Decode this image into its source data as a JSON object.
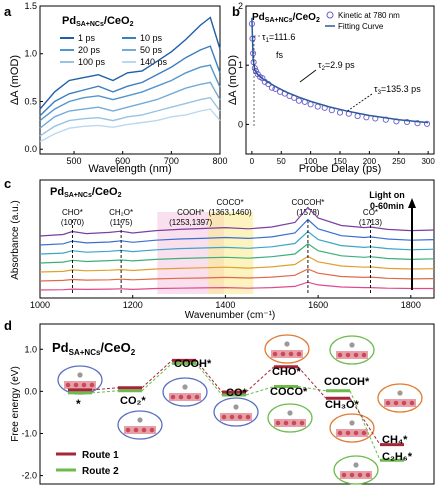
{
  "panels": {
    "a": {
      "label": "a",
      "title_main": "Pd",
      "title_sub": "SA+NCs",
      "title_tail": "/CeO",
      "title_sub2": "2",
      "xlabel": "Wavelength (nm)",
      "ylabel": "ΔA (mOD)",
      "legend": [
        "1 ps",
        "10 ps",
        "20 ps",
        "50 ps",
        "100 ps",
        "140 ps"
      ]
    },
    "b": {
      "label": "b",
      "title_main": "Pd",
      "title_sub": "SA+NCs",
      "title_tail": "/CeO",
      "title_sub2": "2",
      "xlabel": "Probe Delay (ps)",
      "ylabel": "ΔA (mOD)",
      "legend_kinetic": "Kinetic at 780 nm",
      "legend_fit": "Fitting Curve",
      "tau1": "τ",
      "tau1_sub": "1",
      "tau1_val": "=111.6",
      "tau1_unit": "fs",
      "tau2": "τ",
      "tau2_sub": "2",
      "tau2_val": "=2.9 ps",
      "tau3": "τ",
      "tau3_sub": "3",
      "tau3_val": "=135.3 ps"
    },
    "c": {
      "label": "c",
      "title_main": "Pd",
      "title_sub": "SA+NCs",
      "title_tail": "/CeO",
      "title_sub2": "2",
      "xlabel": "Wavenumber (cm⁻¹)",
      "ylabel": "Absorbance (a.u.)",
      "light_on": "Light on",
      "light_range": "0-60min",
      "peaks": [
        {
          "name": "CHO*",
          "pos": "(1070)"
        },
        {
          "name": "CH₂O*",
          "pos": "(1175)"
        },
        {
          "name": "COOH*",
          "pos": "(1253,1397)"
        },
        {
          "name": "COCO*",
          "pos": "(1363,1460)"
        },
        {
          "name": "COCOH*",
          "pos": "(1578)"
        },
        {
          "name": "CO*",
          "pos": "(1713)"
        }
      ]
    },
    "d": {
      "label": "d",
      "title_main": "Pd",
      "title_sub": "SA+NCs",
      "title_tail": "/CeO",
      "title_sub2": "2",
      "ylabel": "Free energy (eV)",
      "species": {
        "star": "*",
        "co2": "CO₂*",
        "cooh": "COOH*",
        "co": "CO*",
        "cho": "CHO*",
        "coco": "COCO*",
        "cocoh": "COCOH*",
        "ch3o": "CH₃O*",
        "ch4": "CH₄*",
        "c2h6": "C₂H₆*"
      },
      "legend_route1": "Route 1",
      "legend_route2": "Route 2",
      "colors": {
        "route1": "#a62639",
        "route2": "#6cbb4c"
      }
    }
  },
  "chart_data": [
    {
      "type": "line",
      "panel": "a",
      "xlabel": "Wavelength (nm)",
      "ylabel": "ΔA (mOD)",
      "xlim": [
        430,
        800
      ],
      "ylim": [
        -0.05,
        1.5
      ],
      "xticks": [
        500,
        600,
        700,
        800
      ],
      "yticks": [
        0.0,
        0.5,
        1.0,
        1.5
      ],
      "x": [
        430,
        460,
        490,
        520,
        550,
        580,
        610,
        640,
        670,
        700,
        730,
        760,
        780,
        800
      ],
      "series": [
        {
          "name": "1 ps",
          "color": "#1f5fa8",
          "values": [
            0.42,
            0.6,
            0.72,
            0.75,
            0.78,
            0.72,
            0.8,
            0.82,
            0.92,
            1.02,
            1.15,
            1.3,
            1.38,
            1.05
          ]
        },
        {
          "name": "10 ps",
          "color": "#3a7fc1",
          "values": [
            0.35,
            0.5,
            0.58,
            0.62,
            0.66,
            0.6,
            0.66,
            0.7,
            0.78,
            0.86,
            0.96,
            1.04,
            1.08,
            0.8
          ]
        },
        {
          "name": "20 ps",
          "color": "#5596cc",
          "values": [
            0.3,
            0.42,
            0.5,
            0.54,
            0.56,
            0.52,
            0.56,
            0.6,
            0.66,
            0.72,
            0.8,
            0.86,
            0.88,
            0.65
          ]
        },
        {
          "name": "50 ps",
          "color": "#74acd8",
          "values": [
            0.22,
            0.34,
            0.4,
            0.42,
            0.44,
            0.4,
            0.44,
            0.48,
            0.52,
            0.58,
            0.64,
            0.68,
            0.7,
            0.52
          ]
        },
        {
          "name": "100 ps",
          "color": "#98c3e4",
          "values": [
            0.14,
            0.24,
            0.3,
            0.32,
            0.33,
            0.3,
            0.34,
            0.36,
            0.4,
            0.44,
            0.48,
            0.52,
            0.54,
            0.4
          ]
        },
        {
          "name": "140 ps",
          "color": "#bcd8ee",
          "values": [
            0.08,
            0.16,
            0.22,
            0.24,
            0.25,
            0.23,
            0.26,
            0.28,
            0.3,
            0.34,
            0.36,
            0.4,
            0.42,
            0.3
          ]
        }
      ]
    },
    {
      "type": "scatter",
      "panel": "b",
      "xlabel": "Probe Delay (ps)",
      "ylabel": "ΔA (mOD)",
      "xlim": [
        -10,
        310
      ],
      "ylim": [
        -0.5,
        2.0
      ],
      "xticks": [
        0,
        50,
        100,
        150,
        200,
        250,
        300
      ],
      "yticks": [
        0,
        1,
        2
      ],
      "kinetic_x": [
        0,
        1,
        2,
        3,
        5,
        7,
        10,
        14,
        18,
        22,
        28,
        34,
        40,
        48,
        56,
        64,
        72,
        80,
        90,
        100,
        112,
        124,
        136,
        150,
        165,
        180,
        195,
        210,
        228,
        246,
        264,
        282,
        298
      ],
      "kinetic_y": [
        1.7,
        1.45,
        1.2,
        1.05,
        0.95,
        0.9,
        0.85,
        0.8,
        0.78,
        0.72,
        0.68,
        0.62,
        0.6,
        0.55,
        0.52,
        0.48,
        0.45,
        0.4,
        0.38,
        0.34,
        0.3,
        0.28,
        0.24,
        0.2,
        0.18,
        0.14,
        0.12,
        0.1,
        0.08,
        0.05,
        0.04,
        0.02,
        0.01
      ],
      "fit_x": [
        0,
        2,
        5,
        10,
        20,
        40,
        60,
        80,
        100,
        130,
        160,
        200,
        250,
        300
      ],
      "fit_y": [
        1.8,
        1.1,
        0.92,
        0.84,
        0.76,
        0.64,
        0.54,
        0.46,
        0.39,
        0.3,
        0.23,
        0.15,
        0.08,
        0.03
      ]
    },
    {
      "type": "line",
      "panel": "c",
      "xlabel": "Wavenumber (cm⁻¹)",
      "ylabel": "Absorbance (a.u.)",
      "xlim": [
        1000,
        1850
      ],
      "xticks": [
        1000,
        1200,
        1400,
        1600,
        1800
      ],
      "x": [
        1000,
        1050,
        1070,
        1100,
        1150,
        1175,
        1200,
        1250,
        1300,
        1350,
        1400,
        1450,
        1500,
        1550,
        1578,
        1600,
        1650,
        1700,
        1713,
        1750,
        1800,
        1850
      ],
      "series": [
        {
          "name": "",
          "color": "#7b3fa0",
          "values": [
            0.0,
            0.05,
            0.15,
            0.08,
            0.12,
            0.16,
            0.1,
            0.18,
            0.22,
            0.25,
            0.28,
            0.24,
            0.3,
            0.45,
            0.95,
            0.6,
            0.35,
            0.28,
            0.3,
            0.22,
            0.18,
            0.2
          ]
        },
        {
          "name": "",
          "color": "#3a6fd0",
          "values": [
            0.0,
            0.04,
            0.13,
            0.07,
            0.1,
            0.14,
            0.09,
            0.16,
            0.2,
            0.22,
            0.25,
            0.22,
            0.27,
            0.4,
            0.85,
            0.54,
            0.31,
            0.25,
            0.27,
            0.2,
            0.16,
            0.18
          ]
        },
        {
          "name": "",
          "color": "#3aa6c8",
          "values": [
            0.0,
            0.03,
            0.11,
            0.06,
            0.09,
            0.12,
            0.08,
            0.14,
            0.18,
            0.2,
            0.22,
            0.19,
            0.24,
            0.35,
            0.75,
            0.48,
            0.28,
            0.22,
            0.24,
            0.18,
            0.14,
            0.16
          ]
        },
        {
          "name": "",
          "color": "#3bb07a",
          "values": [
            0.0,
            0.03,
            0.09,
            0.05,
            0.08,
            0.1,
            0.07,
            0.12,
            0.15,
            0.17,
            0.19,
            0.16,
            0.21,
            0.3,
            0.64,
            0.41,
            0.24,
            0.19,
            0.21,
            0.15,
            0.12,
            0.14
          ]
        },
        {
          "name": "",
          "color": "#e0a030",
          "values": [
            0.0,
            0.02,
            0.07,
            0.04,
            0.06,
            0.08,
            0.05,
            0.1,
            0.12,
            0.14,
            0.16,
            0.13,
            0.17,
            0.25,
            0.52,
            0.34,
            0.2,
            0.16,
            0.17,
            0.12,
            0.1,
            0.11
          ]
        },
        {
          "name": "",
          "color": "#e06a4a",
          "values": [
            0.0,
            0.02,
            0.05,
            0.03,
            0.04,
            0.06,
            0.04,
            0.07,
            0.09,
            0.1,
            0.12,
            0.1,
            0.13,
            0.19,
            0.4,
            0.26,
            0.15,
            0.12,
            0.13,
            0.09,
            0.07,
            0.08
          ]
        },
        {
          "name": "",
          "color": "#e04a8a",
          "values": [
            0.0,
            0.01,
            0.03,
            0.02,
            0.03,
            0.04,
            0.02,
            0.05,
            0.06,
            0.07,
            0.08,
            0.06,
            0.08,
            0.12,
            0.26,
            0.17,
            0.1,
            0.08,
            0.08,
            0.06,
            0.05,
            0.05
          ]
        }
      ],
      "peak_markers": [
        1070,
        1175,
        1578,
        1713
      ],
      "highlight_bands": [
        [
          1253,
          1397
        ],
        [
          1363,
          1460
        ]
      ]
    },
    {
      "type": "line",
      "panel": "d",
      "ylabel": "Free energy (eV)",
      "ylim": [
        -2.2,
        1.6
      ],
      "yticks": [
        -2.0,
        -1.0,
        0.0,
        1.0
      ],
      "route1": [
        {
          "species": "*",
          "energy": 0.0
        },
        {
          "species": "CO₂*",
          "energy": 0.05
        },
        {
          "species": "COOH*",
          "energy": 0.7
        },
        {
          "species": "CO*",
          "energy": -0.05
        },
        {
          "species": "CHO*",
          "energy": 0.55
        },
        {
          "species": "CH₃O*",
          "energy": -0.2
        },
        {
          "species": "CH₄*",
          "energy": -1.3
        }
      ],
      "route2": [
        {
          "species": "*",
          "energy": 0.0
        },
        {
          "species": "CO₂*",
          "energy": 0.05
        },
        {
          "species": "COOH*",
          "energy": 0.7
        },
        {
          "species": "CO*",
          "energy": -0.05
        },
        {
          "species": "COCO*",
          "energy": 0.15
        },
        {
          "species": "COCOH*",
          "energy": 0.05
        },
        {
          "species": "C₂H₆*",
          "energy": -1.6
        }
      ]
    }
  ]
}
